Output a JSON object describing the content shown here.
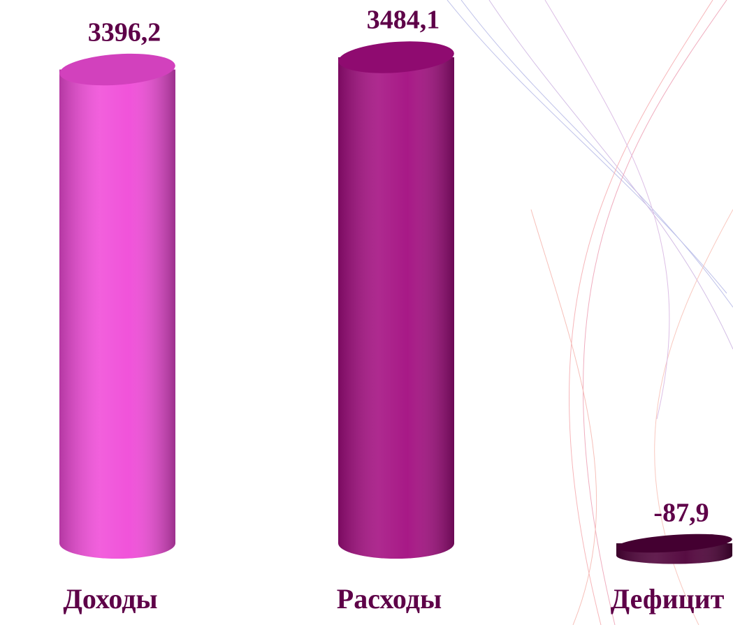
{
  "chart_data": {
    "type": "bar3d",
    "categories": [
      "Доходы",
      "Расходы",
      "Дефицит"
    ],
    "values": [
      3396.2,
      3484.1,
      -87.9
    ],
    "value_labels": [
      "3396,2",
      "3484,1",
      "-87,9"
    ],
    "colors": [
      "#f04ad8",
      "#a30d80",
      "#4e0038"
    ]
  }
}
